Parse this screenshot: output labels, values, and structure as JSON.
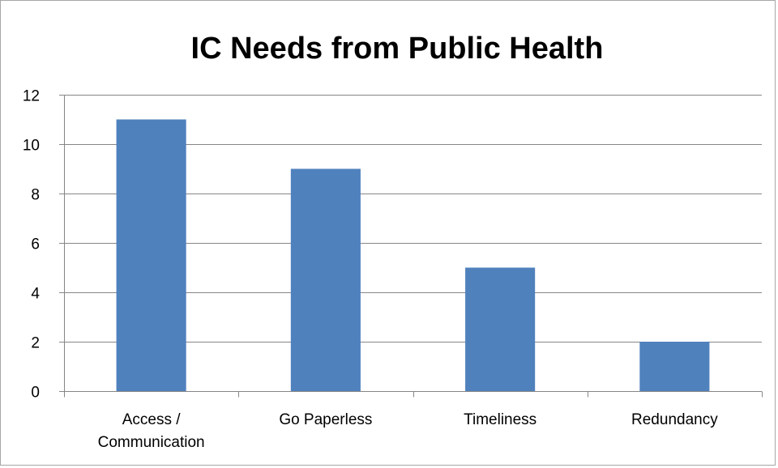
{
  "chart_data": {
    "type": "bar",
    "title": "IC Needs from Public Health",
    "categories": [
      "Access / Communication",
      "Go Paperless",
      "Timeliness",
      "Redundancy"
    ],
    "category_label_lines": [
      [
        "Access /",
        "Communication"
      ],
      [
        "Go Paperless"
      ],
      [
        "Timeliness"
      ],
      [
        "Redundancy"
      ]
    ],
    "values": [
      11,
      9,
      5,
      2
    ],
    "ylim": [
      0,
      12
    ],
    "yticks": [
      0,
      2,
      4,
      6,
      8,
      10,
      12
    ],
    "xlabel": "",
    "ylabel": "",
    "grid": true,
    "legend": "none",
    "bar_color": "#4f81bd",
    "gridline_color": "#868686"
  }
}
